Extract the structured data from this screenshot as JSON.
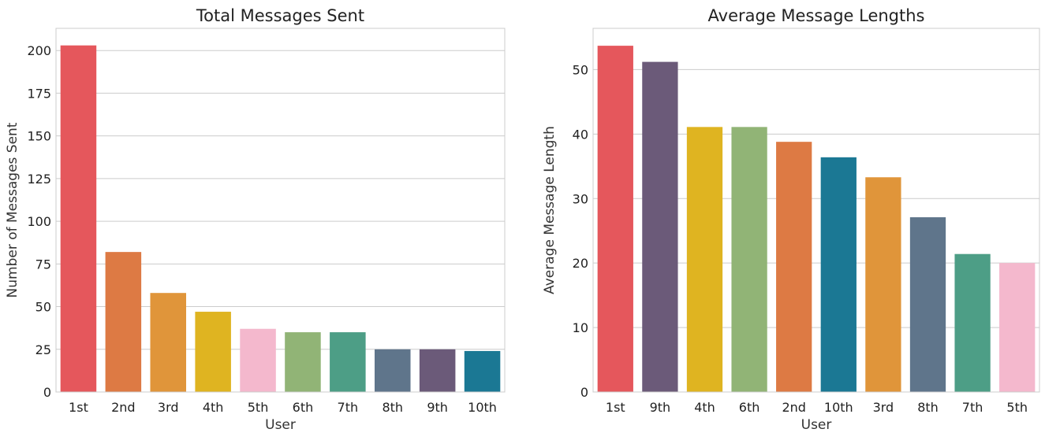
{
  "chart_data": [
    {
      "type": "bar",
      "title": "Total Messages Sent",
      "xlabel": "User",
      "ylabel": "Number of Messages Sent",
      "categories": [
        "1st",
        "2nd",
        "3rd",
        "4th",
        "5th",
        "6th",
        "7th",
        "8th",
        "9th",
        "10th"
      ],
      "values": [
        203,
        82,
        58,
        47,
        37,
        35,
        35,
        25,
        25,
        24
      ],
      "colors": [
        "#e5575c",
        "#dd7a44",
        "#e0953a",
        "#dfb421",
        "#f4b8cd",
        "#91b476",
        "#4d9e86",
        "#5f758b",
        "#6b5a79",
        "#1b7894"
      ],
      "ylim": [
        0,
        213
      ],
      "yticks": [
        0,
        25,
        50,
        75,
        100,
        125,
        150,
        175,
        200
      ],
      "grid": true,
      "legend": "none"
    },
    {
      "type": "bar",
      "title": "Average Message Lengths",
      "xlabel": "User",
      "ylabel": "Average Message Length",
      "categories": [
        "1st",
        "9th",
        "4th",
        "6th",
        "2nd",
        "10th",
        "3rd",
        "8th",
        "7th",
        "5th"
      ],
      "values": [
        53.7,
        51.2,
        41.1,
        41.1,
        38.8,
        36.4,
        33.3,
        27.1,
        21.4,
        20.0
      ],
      "colors": [
        "#e5575c",
        "#6b5a79",
        "#dfb421",
        "#91b476",
        "#dd7a44",
        "#1b7894",
        "#e0953a",
        "#5f758b",
        "#4d9e86",
        "#f4b8cd"
      ],
      "ylim": [
        0,
        56.4
      ],
      "yticks": [
        0,
        10,
        20,
        30,
        40,
        50
      ],
      "grid": true,
      "legend": "none"
    }
  ]
}
